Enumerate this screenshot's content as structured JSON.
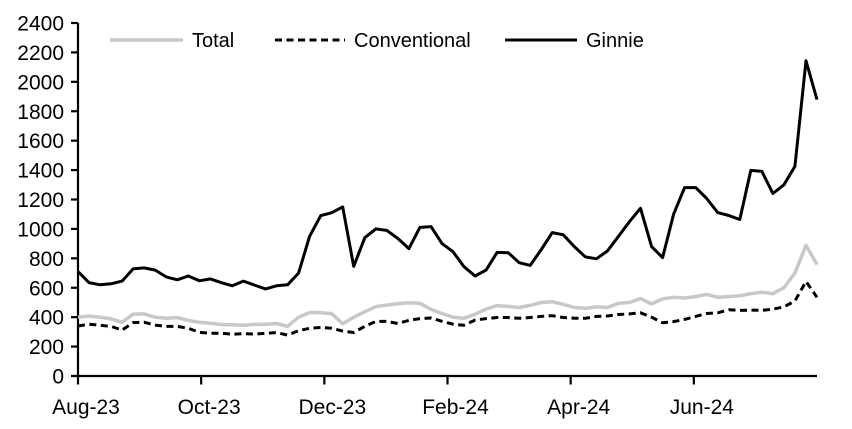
{
  "chart_data": {
    "type": "line",
    "title": "",
    "x_axis": {
      "tick_labels": [
        "Aug-23",
        "Oct-23",
        "Dec-23",
        "Feb-24",
        "Apr-24",
        "Jun-24"
      ],
      "tick_positions_months": [
        0,
        2,
        4,
        6,
        8,
        10
      ],
      "span_months": 12
    },
    "y_axis": {
      "min": 0,
      "max": 2400,
      "step": 200
    },
    "legend_position": "top",
    "series": [
      {
        "name": "Total",
        "color": "#c8c8c8",
        "dash": null,
        "width": 3.5,
        "values": [
          399,
          408,
          400,
          388,
          365,
          420,
          422,
          400,
          392,
          397,
          378,
          365,
          358,
          350,
          348,
          345,
          351,
          351,
          357,
          337,
          400,
          432,
          430,
          424,
          355,
          400,
          437,
          472,
          482,
          492,
          497,
          494,
          453,
          425,
          400,
          392,
          420,
          455,
          478,
          473,
          466,
          480,
          500,
          505,
          487,
          466,
          460,
          470,
          466,
          495,
          500,
          527,
          490,
          525,
          535,
          530,
          540,
          555,
          535,
          540,
          545,
          560,
          570,
          560,
          600,
          700,
          888,
          758
        ]
      },
      {
        "name": "Conventional",
        "color": "#000000",
        "dash": "7 4.5",
        "width": 3,
        "values": [
          340,
          352,
          345,
          337,
          312,
          363,
          365,
          346,
          337,
          337,
          324,
          297,
          290,
          290,
          284,
          288,
          285,
          290,
          295,
          278,
          308,
          324,
          330,
          325,
          305,
          296,
          337,
          371,
          371,
          357,
          378,
          390,
          394,
          372,
          352,
          345,
          380,
          390,
          398,
          398,
          392,
          398,
          405,
          410,
          398,
          393,
          392,
          405,
          408,
          418,
          422,
          430,
          400,
          362,
          370,
          385,
          405,
          425,
          430,
          450,
          446,
          448,
          446,
          455,
          470,
          510,
          643,
          535
        ]
      },
      {
        "name": "Ginnie",
        "color": "#000000",
        "dash": null,
        "width": 3,
        "values": [
          710,
          635,
          620,
          627,
          645,
          728,
          735,
          720,
          674,
          654,
          680,
          647,
          660,
          634,
          613,
          645,
          618,
          592,
          613,
          620,
          700,
          950,
          1090,
          1110,
          1150,
          745,
          940,
          1000,
          990,
          935,
          866,
          1010,
          1016,
          900,
          845,
          743,
          680,
          720,
          840,
          838,
          770,
          752,
          860,
          975,
          960,
          880,
          810,
          797,
          850,
          950,
          1050,
          1140,
          880,
          805,
          1100,
          1281,
          1281,
          1207,
          1111,
          1091,
          1064,
          1398,
          1391,
          1241,
          1300,
          1425,
          2143,
          1879
        ]
      }
    ]
  }
}
